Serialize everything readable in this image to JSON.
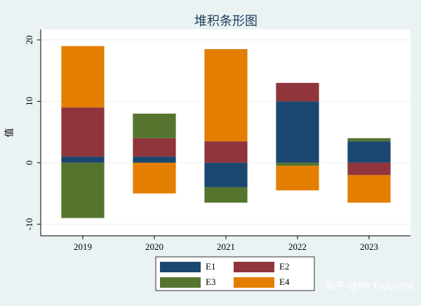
{
  "chart_data": {
    "type": "stacked_bar",
    "title": "堆积条形图",
    "y_label": "值",
    "categories": [
      "2019",
      "2020",
      "2021",
      "2022",
      "2023"
    ],
    "series": [
      {
        "name": "E1",
        "color": "#1a476f",
        "values": [
          1,
          1,
          -4,
          10,
          3.5
        ]
      },
      {
        "name": "E2",
        "color": "#90353b",
        "values": [
          8,
          3,
          3.5,
          3,
          -2
        ]
      },
      {
        "name": "E3",
        "color": "#55752f",
        "values": [
          -9,
          4,
          -2.5,
          -0.5,
          0.5
        ]
      },
      {
        "name": "E4",
        "color": "#e37e00",
        "values": [
          10,
          -5,
          15,
          -4,
          -4.5
        ]
      }
    ],
    "ylim": [
      -11.9,
      21.7
    ],
    "yticks": [
      -10,
      0,
      10,
      20
    ],
    "grid": true,
    "watermark": "知乎 @Mr Figurant"
  }
}
